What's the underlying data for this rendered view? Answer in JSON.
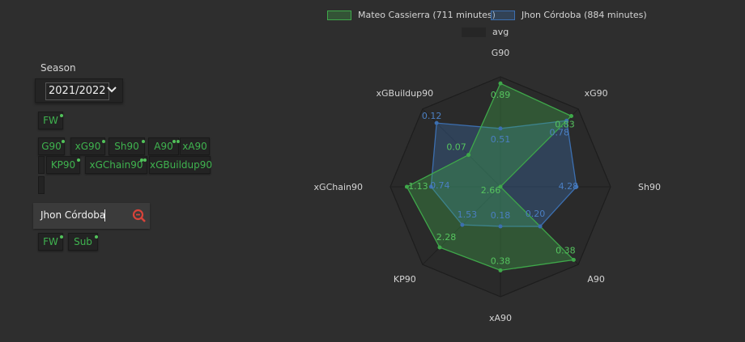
{
  "season": {
    "label": "Season",
    "value": "2021/2022"
  },
  "player_filters": {
    "positions": [
      "FW"
    ],
    "metrics": [
      "G90",
      "xG90",
      "Sh90",
      "A90",
      "xA90",
      "KP90",
      "xGChain90",
      "xGBuildup90"
    ]
  },
  "search": {
    "value": "Jhon Córdoba"
  },
  "compare_filters": {
    "positions": [
      "FW",
      "Sub"
    ]
  },
  "legend": {
    "player1": "Mateo Cassierra (711 minutes)",
    "player2": "Jhon Córdoba (884 minutes)",
    "avg": "avg"
  },
  "colors": {
    "player1": "#3fa84a",
    "player2": "#3c6fb0",
    "chip_text": "#3fb34f",
    "search_icon": "#d9433a"
  },
  "icons": [
    "chevron-down-icon",
    "search-minus-icon"
  ],
  "chart_data": {
    "type": "radar",
    "axes": [
      "G90",
      "xG90",
      "Sh90",
      "A90",
      "xA90",
      "KP90",
      "xGChain90",
      "xGBuildup90"
    ],
    "series": [
      {
        "name": "Mateo Cassierra (711 minutes)",
        "values": [
          0.89,
          0.83,
          2.66,
          0.38,
          0.38,
          2.28,
          1.13,
          0.07
        ],
        "fractions": [
          0.94,
          0.91,
          0.0,
          0.94,
          0.76,
          0.78,
          0.85,
          0.41
        ]
      },
      {
        "name": "Jhon Córdoba (884 minutes)",
        "values": [
          0.51,
          0.78,
          4.28,
          0.2,
          0.18,
          1.53,
          0.74,
          0.12
        ],
        "fractions": [
          0.53,
          0.85,
          0.69,
          0.51,
          0.36,
          0.49,
          0.63,
          0.82
        ]
      }
    ],
    "value_labels": [
      [
        "0.89",
        "0.83",
        "2.66",
        "0.38",
        "0.38",
        "2.28",
        "1.13",
        "0.07"
      ],
      [
        "0.51",
        "0.78",
        "4.28",
        "0.20",
        "0.18",
        "1.53",
        "0.74",
        "0.12"
      ]
    ],
    "grid": true
  }
}
